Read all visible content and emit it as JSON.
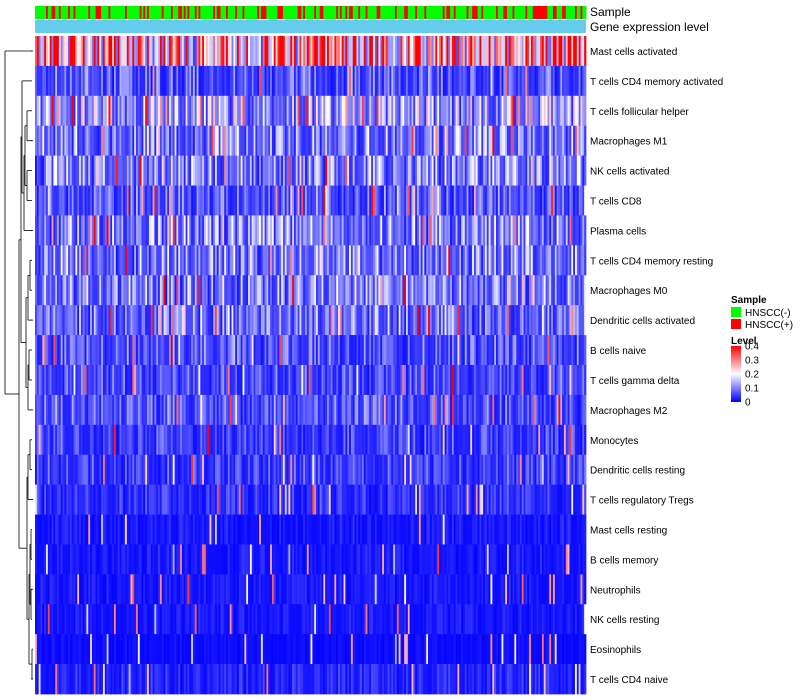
{
  "chart_data": {
    "type": "heatmap",
    "title": "",
    "annotation_tracks": [
      "Sample",
      "Gene expression level"
    ],
    "rows": [
      "Mast cells activated",
      "T cells CD4 memory activated",
      "T cells follicular helper",
      "Macrophages M1",
      "NK cells activated",
      "T cells CD8",
      "Plasma cells",
      "T cells CD4 memory resting",
      "Macrophages M0",
      "Dendritic cells activated",
      "B cells naive",
      "T cells gamma delta",
      "Macrophages M2",
      "Monocytes",
      "Dendritic cells resting",
      "T cells regulatory  Tregs",
      "Mast cells resting",
      "B cells memory",
      "Neutrophils",
      "NK cells resting",
      "Eosinophils",
      "T cells CD4 naive"
    ],
    "row_mean_level": [
      0.3,
      0.07,
      0.14,
      0.1,
      0.1,
      0.07,
      0.1,
      0.1,
      0.1,
      0.09,
      0.07,
      0.06,
      0.07,
      0.05,
      0.05,
      0.04,
      0.02,
      0.02,
      0.02,
      0.02,
      0.01,
      0.03
    ],
    "n_samples": 300,
    "sample_fraction_positive": 0.3,
    "legend": {
      "sample": {
        "title": "Sample",
        "entries": [
          {
            "label": "HNSCC(-)",
            "color": "#00ff00"
          },
          {
            "label": "HNSCC(+)",
            "color": "#ff0000"
          }
        ]
      },
      "level": {
        "title": "Level",
        "ticks": [
          "0.4",
          "0.3",
          "0.2",
          "0.1",
          "0"
        ],
        "range": [
          0,
          0.4
        ],
        "colors": {
          "low": "#0000ff",
          "mid": "#ffffff",
          "high": "#ff0000"
        }
      }
    },
    "track_colors": {
      "gene_expression": "#66ccee"
    }
  }
}
